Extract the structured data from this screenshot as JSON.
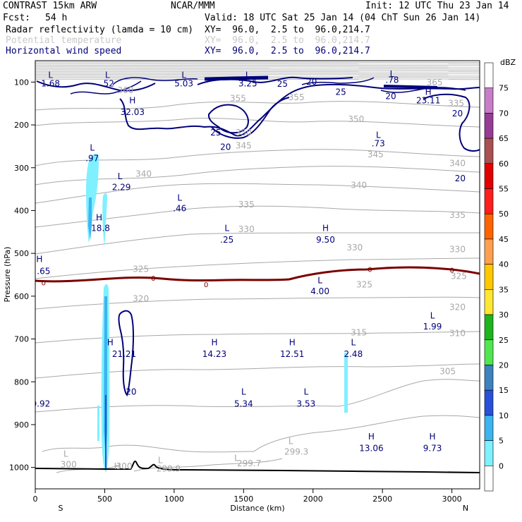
{
  "header": {
    "model": "CONTRAST 15km ARW",
    "org": "NCAR/MMM",
    "init": "Init: 12 UTC Thu 23 Jan 14",
    "fcst_label": "Fcst:",
    "fcst_value": "54 h",
    "valid": "Valid: 18 UTC Sat 25 Jan 14 (04 ChT Sun 26 Jan 14)",
    "fields": [
      {
        "name": "Radar reflectivity (lamda = 10 cm)",
        "xy": "XY=  96.0,  2.5 to  96.0,214.7"
      },
      {
        "name": "Potential temperature",
        "xy": "XY=  96.0,  2.5 to  96.0,214.7"
      },
      {
        "name": "Horizontal wind speed",
        "xy": "XY=  96.0,  2.5 to  96.0,214.7"
      }
    ]
  },
  "colors": {
    "wind": "#00007a",
    "theta": "#a8a8a8",
    "freezing": "#7a0000",
    "terrain": "#000000",
    "radar_light": "#7ff0ff",
    "radar_mid": "#3cb4f0",
    "radar_dark": "#2850d8"
  },
  "chart_data": {
    "type": "cross-section",
    "xlabel": "Distance (km)",
    "ylabel": "Pressure (hPa)",
    "xlim": [
      0,
      3200
    ],
    "ylim": [
      1050,
      50
    ],
    "x_ticks": [
      "0",
      "500",
      "1000",
      "1500",
      "2000",
      "2500",
      "3000"
    ],
    "y_ticks": [
      "100",
      "200",
      "300",
      "400",
      "500",
      "600",
      "700",
      "800",
      "900",
      "1000"
    ],
    "x_end_labels": {
      "left": "S",
      "right": "N"
    },
    "colorbar": {
      "unit": "dBZ",
      "levels": [
        "75",
        "70",
        "65",
        "60",
        "55",
        "50",
        "45",
        "40",
        "35",
        "30",
        "25",
        "20",
        "15",
        "10",
        "5",
        "0"
      ],
      "colors": [
        "#ffffff",
        "#c87dc8",
        "#963c96",
        "#aa5050",
        "#e10000",
        "#ff1e1e",
        "#ff6400",
        "#ffa050",
        "#ffc800",
        "#ffe632",
        "#1eb41e",
        "#50e650",
        "#3c82be",
        "#2850d8",
        "#3cb4f0",
        "#7ff0ff",
        "#ffffff"
      ]
    },
    "wind_labels": [
      {
        "x": 110,
        "p": 90,
        "t": "L"
      },
      {
        "x": 110,
        "p": 110,
        "t": "1.68"
      },
      {
        "x": 520,
        "p": 90,
        "t": "L"
      },
      {
        "x": 520,
        "p": 110,
        "t": ".52"
      },
      {
        "x": 1070,
        "p": 90,
        "t": "L"
      },
      {
        "x": 1070,
        "p": 110,
        "t": "5.03"
      },
      {
        "x": 1530,
        "p": 90,
        "t": "L"
      },
      {
        "x": 1530,
        "p": 110,
        "t": "3.25"
      },
      {
        "x": 2570,
        "p": 88,
        "t": "L"
      },
      {
        "x": 2570,
        "p": 102,
        "t": ".78"
      },
      {
        "x": 1780,
        "p": 111,
        "t": "25"
      },
      {
        "x": 1990,
        "p": 106,
        "t": "20"
      },
      {
        "x": 2200,
        "p": 130,
        "t": "25"
      },
      {
        "x": 2560,
        "p": 140,
        "t": "20"
      },
      {
        "x": 700,
        "p": 150,
        "t": "H"
      },
      {
        "x": 700,
        "p": 177,
        "t": "32.03"
      },
      {
        "x": 2830,
        "p": 130,
        "t": "H"
      },
      {
        "x": 2830,
        "p": 150,
        "t": "23.11"
      },
      {
        "x": 3040,
        "p": 180,
        "t": "20"
      },
      {
        "x": 1300,
        "p": 225,
        "t": "25"
      },
      {
        "x": 1370,
        "p": 258,
        "t": "20"
      },
      {
        "x": 2470,
        "p": 230,
        "t": "L"
      },
      {
        "x": 2470,
        "p": 250,
        "t": ".73"
      },
      {
        "x": 3060,
        "p": 332,
        "t": "20"
      },
      {
        "x": 410,
        "p": 260,
        "t": "L"
      },
      {
        "x": 410,
        "p": 285,
        "t": ".97"
      },
      {
        "x": 610,
        "p": 327,
        "t": "L"
      },
      {
        "x": 620,
        "p": 352,
        "t": "2.29"
      },
      {
        "x": 1040,
        "p": 377,
        "t": "L"
      },
      {
        "x": 1040,
        "p": 402,
        "t": ".46"
      },
      {
        "x": 460,
        "p": 423,
        "t": "H"
      },
      {
        "x": 470,
        "p": 448,
        "t": "18.8"
      },
      {
        "x": 1380,
        "p": 448,
        "t": "L"
      },
      {
        "x": 1380,
        "p": 475,
        "t": ".25"
      },
      {
        "x": 2090,
        "p": 448,
        "t": "H"
      },
      {
        "x": 2090,
        "p": 475,
        "t": "9.50"
      },
      {
        "x": 30,
        "p": 520,
        "t": "H"
      },
      {
        "x": 60,
        "p": 548,
        "t": ".65"
      },
      {
        "x": 2050,
        "p": 570,
        "t": "L"
      },
      {
        "x": 2050,
        "p": 595,
        "t": "4.00"
      },
      {
        "x": 2860,
        "p": 652,
        "t": "L"
      },
      {
        "x": 2860,
        "p": 678,
        "t": "1.99"
      },
      {
        "x": 540,
        "p": 715,
        "t": "H"
      },
      {
        "x": 640,
        "p": 742,
        "t": "21.21"
      },
      {
        "x": 1290,
        "p": 715,
        "t": "H"
      },
      {
        "x": 1290,
        "p": 742,
        "t": "14.23"
      },
      {
        "x": 1850,
        "p": 715,
        "t": "H"
      },
      {
        "x": 1850,
        "p": 742,
        "t": "12.51"
      },
      {
        "x": 2290,
        "p": 715,
        "t": "L"
      },
      {
        "x": 2290,
        "p": 742,
        "t": "2.48"
      },
      {
        "x": 690,
        "p": 830,
        "t": "20"
      },
      {
        "x": 1500,
        "p": 830,
        "t": "L"
      },
      {
        "x": 1500,
        "p": 858,
        "t": "5.34"
      },
      {
        "x": 1950,
        "p": 830,
        "t": "L"
      },
      {
        "x": 1950,
        "p": 858,
        "t": "3.53"
      },
      {
        "x": 40,
        "p": 858,
        "t": "0.92"
      },
      {
        "x": 2420,
        "p": 935,
        "t": "H"
      },
      {
        "x": 2420,
        "p": 962,
        "t": "13.06"
      },
      {
        "x": 2860,
        "p": 935,
        "t": "H"
      },
      {
        "x": 2860,
        "p": 962,
        "t": "9.73"
      }
    ],
    "theta_labels": [
      {
        "x": 2875,
        "p": 108,
        "t": "365"
      },
      {
        "x": 650,
        "p": 126,
        "t": "360"
      },
      {
        "x": 1880,
        "p": 142,
        "t": "355"
      },
      {
        "x": 1460,
        "p": 145,
        "t": "355"
      },
      {
        "x": 3030,
        "p": 156,
        "t": "335"
      },
      {
        "x": 2310,
        "p": 193,
        "t": "350"
      },
      {
        "x": 1500,
        "p": 225,
        "t": "350"
      },
      {
        "x": 1500,
        "p": 255,
        "t": "345"
      },
      {
        "x": 2450,
        "p": 276,
        "t": "345"
      },
      {
        "x": 3040,
        "p": 296,
        "t": "340"
      },
      {
        "x": 780,
        "p": 321,
        "t": "340"
      },
      {
        "x": 2330,
        "p": 347,
        "t": "340"
      },
      {
        "x": 1520,
        "p": 393,
        "t": "335"
      },
      {
        "x": 3040,
        "p": 417,
        "t": "335"
      },
      {
        "x": 1520,
        "p": 450,
        "t": "330"
      },
      {
        "x": 2300,
        "p": 493,
        "t": "330"
      },
      {
        "x": 3040,
        "p": 497,
        "t": "330"
      },
      {
        "x": 760,
        "p": 543,
        "t": "325"
      },
      {
        "x": 2370,
        "p": 580,
        "t": "325"
      },
      {
        "x": 3050,
        "p": 560,
        "t": "325"
      },
      {
        "x": 760,
        "p": 613,
        "t": "320"
      },
      {
        "x": 3040,
        "p": 632,
        "t": "320"
      },
      {
        "x": 2330,
        "p": 692,
        "t": "315"
      },
      {
        "x": 3040,
        "p": 693,
        "t": "310"
      },
      {
        "x": 2970,
        "p": 782,
        "t": "305"
      },
      {
        "x": 240,
        "p": 1000,
        "t": "300"
      },
      {
        "x": 640,
        "p": 1004,
        "t": "300"
      },
      {
        "x": 1880,
        "p": 970,
        "t": "299.3"
      },
      {
        "x": 1540,
        "p": 997,
        "t": "299.7"
      },
      {
        "x": 960,
        "p": 1010,
        "t": "299.9"
      },
      {
        "x": 220,
        "p": 975,
        "t": "L"
      },
      {
        "x": 900,
        "p": 990,
        "t": "L"
      },
      {
        "x": 1840,
        "p": 945,
        "t": "L"
      },
      {
        "x": 1450,
        "p": 985,
        "t": "L"
      },
      {
        "x": 590,
        "p": 1004,
        "t": "H"
      }
    ],
    "freezing_labels": [
      {
        "x": 60,
        "p": 575,
        "t": "0"
      },
      {
        "x": 850,
        "p": 564,
        "t": "0"
      },
      {
        "x": 1230,
        "p": 579,
        "t": "0"
      },
      {
        "x": 2410,
        "p": 543,
        "t": "0"
      },
      {
        "x": 3000,
        "p": 545,
        "t": "0"
      }
    ]
  }
}
